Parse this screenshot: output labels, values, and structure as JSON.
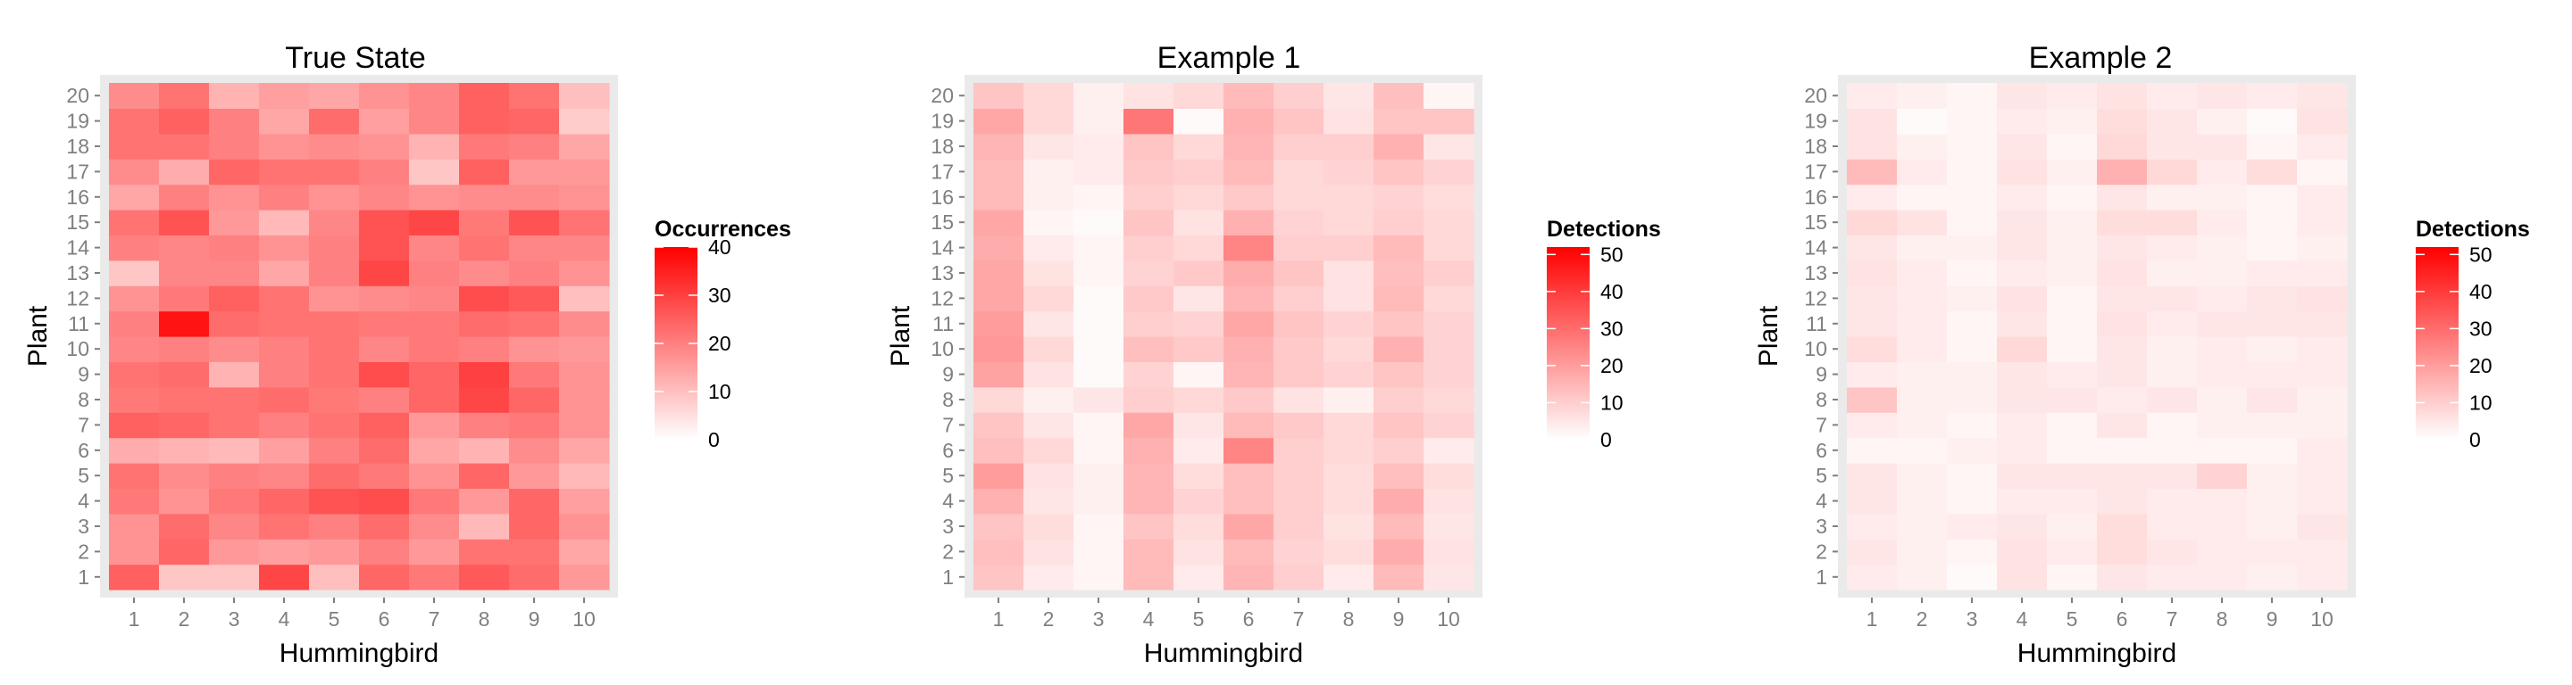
{
  "chart_data": [
    {
      "type": "heatmap",
      "title": "True State",
      "xlabel": "Hummingbird",
      "ylabel": "Plant",
      "x_categories": [
        "1",
        "2",
        "3",
        "4",
        "5",
        "6",
        "7",
        "8",
        "9",
        "10"
      ],
      "y_categories": [
        "1",
        "2",
        "3",
        "4",
        "5",
        "6",
        "7",
        "8",
        "9",
        "10",
        "11",
        "12",
        "13",
        "14",
        "15",
        "16",
        "17",
        "18",
        "19",
        "20"
      ],
      "legend": {
        "title": "Occurrences",
        "min": 0,
        "max": 40,
        "ticks": [
          0,
          10,
          20,
          30,
          40
        ]
      },
      "values_by_plant": {
        "20": [
          18,
          22,
          12,
          15,
          14,
          17,
          19,
          25,
          22,
          10
        ],
        "19": [
          22,
          25,
          20,
          14,
          23,
          15,
          19,
          25,
          24,
          8
        ],
        "18": [
          22,
          22,
          20,
          17,
          18,
          17,
          12,
          21,
          20,
          14
        ],
        "17": [
          18,
          13,
          24,
          22,
          22,
          20,
          9,
          25,
          16,
          16
        ],
        "16": [
          14,
          20,
          17,
          20,
          17,
          19,
          17,
          18,
          18,
          17
        ],
        "15": [
          22,
          27,
          16,
          11,
          19,
          27,
          29,
          21,
          27,
          22
        ],
        "14": [
          20,
          19,
          20,
          17,
          20,
          27,
          19,
          22,
          19,
          19
        ],
        "13": [
          9,
          19,
          19,
          14,
          20,
          29,
          20,
          18,
          20,
          17
        ],
        "12": [
          17,
          21,
          25,
          22,
          17,
          18,
          19,
          28,
          26,
          10
        ],
        "11": [
          20,
          37,
          23,
          22,
          22,
          21,
          21,
          23,
          22,
          18
        ],
        "10": [
          19,
          20,
          18,
          20,
          22,
          19,
          21,
          20,
          17,
          16
        ],
        "9": [
          22,
          23,
          12,
          20,
          22,
          28,
          24,
          30,
          21,
          17
        ],
        "8": [
          21,
          22,
          22,
          23,
          21,
          20,
          24,
          29,
          24,
          17
        ],
        "7": [
          25,
          24,
          22,
          20,
          22,
          25,
          16,
          20,
          21,
          17
        ],
        "6": [
          13,
          12,
          11,
          15,
          20,
          23,
          14,
          12,
          18,
          14
        ],
        "5": [
          22,
          18,
          20,
          19,
          23,
          21,
          17,
          24,
          16,
          11
        ],
        "4": [
          21,
          17,
          21,
          24,
          27,
          28,
          21,
          16,
          24,
          15
        ],
        "3": [
          17,
          23,
          19,
          22,
          20,
          23,
          18,
          11,
          24,
          17
        ],
        "2": [
          17,
          24,
          16,
          15,
          16,
          20,
          16,
          22,
          22,
          14
        ],
        "1": [
          25,
          9,
          9,
          29,
          10,
          24,
          21,
          26,
          23,
          16
        ]
      }
    },
    {
      "type": "heatmap",
      "title": "Example 1",
      "xlabel": "Hummingbird",
      "ylabel": "Plant",
      "x_categories": [
        "1",
        "2",
        "3",
        "4",
        "5",
        "6",
        "7",
        "8",
        "9",
        "10"
      ],
      "y_categories": [
        "1",
        "2",
        "3",
        "4",
        "5",
        "6",
        "7",
        "8",
        "9",
        "10",
        "11",
        "12",
        "13",
        "14",
        "15",
        "16",
        "17",
        "18",
        "19",
        "20"
      ],
      "legend": {
        "title": "Detections",
        "min": 0,
        "max": 52,
        "ticks": [
          0,
          10,
          20,
          30,
          40,
          50
        ]
      },
      "values_by_plant": {
        "20": [
          12,
          8,
          3,
          6,
          8,
          14,
          10,
          5,
          13,
          2
        ],
        "19": [
          18,
          8,
          3,
          28,
          1,
          16,
          12,
          6,
          12,
          12
        ],
        "18": [
          15,
          5,
          4,
          12,
          8,
          15,
          10,
          10,
          16,
          5
        ],
        "17": [
          14,
          3,
          4,
          11,
          10,
          14,
          8,
          9,
          12,
          9
        ],
        "16": [
          14,
          3,
          2,
          10,
          8,
          11,
          8,
          8,
          9,
          7
        ],
        "15": [
          18,
          2,
          1,
          12,
          6,
          16,
          9,
          8,
          10,
          8
        ],
        "14": [
          17,
          4,
          2,
          10,
          8,
          25,
          10,
          10,
          14,
          8
        ],
        "13": [
          18,
          6,
          2,
          9,
          11,
          17,
          12,
          6,
          13,
          10
        ],
        "12": [
          18,
          8,
          1,
          11,
          5,
          15,
          10,
          6,
          14,
          8
        ],
        "11": [
          20,
          5,
          1,
          10,
          9,
          18,
          12,
          9,
          12,
          9
        ],
        "10": [
          21,
          8,
          1,
          13,
          11,
          16,
          11,
          8,
          16,
          9
        ],
        "9": [
          19,
          6,
          1,
          9,
          2,
          15,
          11,
          9,
          12,
          9
        ],
        "8": [
          8,
          3,
          5,
          10,
          8,
          11,
          6,
          3,
          10,
          8
        ],
        "7": [
          12,
          5,
          2,
          18,
          5,
          14,
          11,
          8,
          12,
          9
        ],
        "6": [
          13,
          8,
          2,
          16,
          4,
          25,
          10,
          8,
          10,
          4
        ],
        "5": [
          20,
          6,
          3,
          15,
          7,
          13,
          10,
          7,
          13,
          7
        ],
        "4": [
          16,
          5,
          3,
          15,
          9,
          13,
          10,
          7,
          17,
          6
        ],
        "3": [
          12,
          7,
          2,
          12,
          7,
          18,
          10,
          6,
          14,
          5
        ],
        "2": [
          13,
          6,
          2,
          14,
          6,
          14,
          9,
          7,
          17,
          6
        ],
        "1": [
          12,
          4,
          2,
          14,
          4,
          15,
          10,
          4,
          14,
          5
        ]
      }
    },
    {
      "type": "heatmap",
      "title": "Example 2",
      "xlabel": "Hummingbird",
      "ylabel": "Plant",
      "x_categories": [
        "1",
        "2",
        "3",
        "4",
        "5",
        "6",
        "7",
        "8",
        "9",
        "10"
      ],
      "y_categories": [
        "1",
        "2",
        "3",
        "4",
        "5",
        "6",
        "7",
        "8",
        "9",
        "10",
        "11",
        "12",
        "13",
        "14",
        "15",
        "16",
        "17",
        "18",
        "19",
        "20"
      ],
      "legend": {
        "title": "Detections",
        "min": 0,
        "max": 52,
        "ticks": [
          0,
          10,
          20,
          30,
          40,
          50
        ]
      },
      "values_by_plant": {
        "20": [
          4,
          3,
          2,
          5,
          4,
          6,
          4,
          5,
          4,
          5
        ],
        "19": [
          6,
          1,
          2,
          4,
          3,
          7,
          5,
          3,
          1,
          6
        ],
        "18": [
          6,
          3,
          2,
          5,
          2,
          8,
          5,
          5,
          2,
          4
        ],
        "17": [
          14,
          4,
          2,
          6,
          3,
          16,
          8,
          4,
          7,
          2
        ],
        "16": [
          4,
          2,
          2,
          4,
          2,
          5,
          3,
          3,
          2,
          4
        ],
        "15": [
          8,
          6,
          2,
          5,
          3,
          7,
          7,
          4,
          2,
          4
        ],
        "14": [
          5,
          3,
          3,
          5,
          3,
          5,
          4,
          3,
          2,
          3
        ],
        "13": [
          6,
          4,
          2,
          4,
          3,
          6,
          3,
          3,
          4,
          4
        ],
        "12": [
          5,
          4,
          3,
          6,
          2,
          5,
          5,
          4,
          5,
          6
        ],
        "11": [
          5,
          4,
          2,
          5,
          2,
          6,
          4,
          5,
          5,
          5
        ],
        "10": [
          7,
          4,
          2,
          8,
          2,
          5,
          3,
          4,
          3,
          4
        ],
        "9": [
          4,
          3,
          3,
          5,
          4,
          5,
          3,
          4,
          4,
          4
        ],
        "8": [
          12,
          3,
          3,
          5,
          5,
          4,
          5,
          3,
          5,
          3
        ],
        "7": [
          4,
          3,
          2,
          4,
          2,
          5,
          2,
          3,
          3,
          3
        ],
        "6": [
          2,
          2,
          3,
          4,
          2,
          2,
          2,
          2,
          2,
          4
        ],
        "5": [
          5,
          3,
          2,
          5,
          5,
          5,
          5,
          9,
          3,
          4
        ],
        "4": [
          5,
          3,
          2,
          4,
          4,
          5,
          4,
          4,
          3,
          4
        ],
        "3": [
          4,
          3,
          4,
          5,
          3,
          7,
          4,
          4,
          3,
          5
        ],
        "2": [
          5,
          3,
          2,
          6,
          4,
          7,
          5,
          4,
          4,
          4
        ],
        "1": [
          4,
          3,
          1,
          6,
          2,
          5,
          4,
          4,
          3,
          4
        ]
      }
    }
  ],
  "colors": {
    "low": "#ffffff",
    "high": "#ff0000",
    "grid_background": "#eaeaea",
    "tick_label": "#7f7f7f",
    "text": "#000000"
  }
}
